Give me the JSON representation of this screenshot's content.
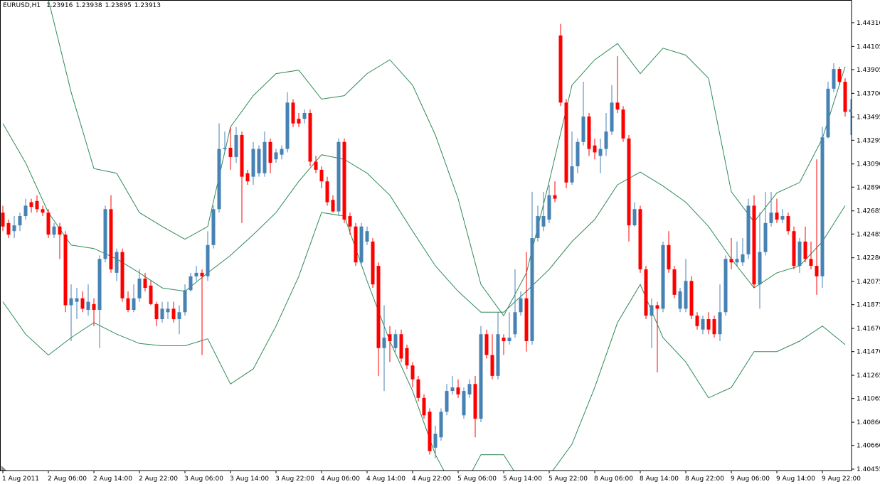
{
  "chart_data": {
    "type": "candlestick",
    "symbol": "EURUSD,H1",
    "header_values": [
      1.23916,
      1.23938,
      1.23895,
      1.23913
    ],
    "up_color": "#4682b4",
    "down_color": "#ff0000",
    "band_color": "#2e8b57",
    "grid": false,
    "ylim": [
      1.40443,
      1.44506
    ],
    "yticks": [
      {
        "value": 1.4431,
        "label": "1.44310"
      },
      1.44105,
      1.43905,
      {
        "value": 1.437,
        "label": "1.43700"
      },
      1.43495,
      1.43295,
      {
        "value": 1.4309,
        "label": "1.43090"
      },
      {
        "value": 1.4289,
        "label": "1.42890"
      },
      1.42685,
      1.42485,
      {
        "value": 1.4228,
        "label": "1.42280"
      },
      1.42075,
      1.41875,
      {
        "value": 1.4167,
        "label": "1.41670"
      },
      {
        "value": 1.4147,
        "label": "1.41470"
      },
      1.41265,
      1.41065,
      {
        "value": 1.4086,
        "label": "1.40860"
      },
      {
        "value": 1.4066,
        "label": "1.40660"
      },
      1.40455
    ],
    "categories": [
      "1 Aug 2011",
      null,
      null,
      null,
      null,
      null,
      null,
      null,
      "2 Aug 06:00",
      null,
      null,
      null,
      null,
      null,
      null,
      null,
      "2 Aug 14:00",
      null,
      null,
      null,
      null,
      null,
      null,
      null,
      "2 Aug 22:00",
      null,
      null,
      null,
      null,
      null,
      null,
      null,
      "3 Aug 06:00",
      null,
      null,
      null,
      null,
      null,
      null,
      null,
      "3 Aug 14:00",
      null,
      null,
      null,
      null,
      null,
      null,
      null,
      "3 Aug 22:00",
      null,
      null,
      null,
      null,
      null,
      null,
      null,
      "4 Aug 06:00",
      null,
      null,
      null,
      null,
      null,
      null,
      null,
      "4 Aug 14:00",
      null,
      null,
      null,
      null,
      null,
      null,
      null,
      "4 Aug 22:00",
      null,
      null,
      null,
      null,
      null,
      null,
      null,
      "5 Aug 06:00",
      null,
      null,
      null,
      null,
      null,
      null,
      null,
      "5 Aug 14:00",
      null,
      null,
      null,
      null,
      null,
      null,
      null,
      "5 Aug 22:00",
      null,
      null,
      null,
      null,
      null,
      null,
      null,
      "8 Aug 06:00",
      null,
      null,
      null,
      null,
      null,
      null,
      null,
      "8 Aug 14:00",
      null,
      null,
      null,
      null,
      null,
      null,
      null,
      "8 Aug 22:00",
      null,
      null,
      null,
      null,
      null,
      null,
      null,
      "9 Aug 06:00",
      null,
      null,
      null,
      null,
      null,
      null,
      null,
      "9 Aug 14:00",
      null,
      null,
      null,
      null,
      null,
      null,
      null,
      "9 Aug 22:00",
      null,
      null,
      null,
      null,
      null
    ],
    "open": [
      1.4267,
      1.4258,
      1.4251,
      1.4256,
      1.4264,
      1.4276,
      1.4277,
      1.427,
      1.4267,
      1.4248,
      1.4255,
      1.4248,
      1.4187,
      1.419,
      1.4193,
      1.4183,
      1.4188,
      1.4183,
      1.4227,
      1.427,
      1.4215,
      1.4233,
      1.4193,
      1.4183,
      1.4193,
      1.421,
      1.4204,
      1.4188,
      1.4175,
      1.4181,
      1.4184,
      1.4175,
      1.4181,
      1.42,
      1.4212,
      1.4215,
      1.4212,
      1.4239,
      1.427,
      1.4322,
      1.4323,
      1.4315,
      1.4334,
      1.4301,
      1.4298,
      1.4301,
      1.4301,
      1.4328,
      1.4313,
      1.4317,
      1.4322,
      1.4362,
      1.4348,
      1.4348,
      1.4353,
      1.4311,
      1.4304,
      1.4294,
      1.4278,
      1.4268,
      1.4328,
      1.4264,
      1.4255,
      1.4224,
      1.4242,
      1.4242,
      1.4221,
      1.415,
      1.4162,
      1.415,
      1.4162,
      1.415,
      1.4135,
      1.4123,
      1.4107,
      1.4095,
      1.4064,
      1.4073,
      1.4095,
      1.4113,
      1.4116,
      1.4092,
      1.411,
      1.4119,
      1.4089,
      1.4162,
      1.4144,
      1.4126,
      1.4159,
      1.4156,
      1.4162,
      1.4181,
      1.4193,
      1.4156,
      1.4245,
      1.4255,
      1.4261,
      1.4282,
      1.442,
      1.4362,
      1.4293,
      1.4307,
      1.4328,
      1.435,
      1.4325,
      1.4316,
      1.4322,
      1.4337,
      1.4362,
      1.4356,
      1.4331,
      1.4256,
      1.427,
      1.4218,
      1.4178,
      1.4187,
      1.4184,
      1.4239,
      1.4218,
      1.4184,
      1.4184,
      1.4208,
      1.4178,
      1.4166,
      1.4175,
      1.4175,
      1.4162,
      1.4181,
      1.4227,
      1.4224,
      1.4224,
      1.4231,
      1.4273,
      1.4205,
      1.4233,
      1.4258,
      1.4267,
      1.4261,
      1.4264,
      1.4251,
      1.4221,
      1.4242,
      1.4227,
      1.4221,
      1.4212,
      1.4332,
      1.4374,
      1.4391,
      1.438,
      1.4354
    ],
    "high": [
      1.4273,
      1.4261,
      1.4264,
      1.4267,
      1.4279,
      1.4279,
      1.4282,
      1.4273,
      1.427,
      1.4258,
      1.4258,
      1.4251,
      1.4205,
      1.4202,
      1.4199,
      1.4205,
      1.4193,
      1.423,
      1.4273,
      1.4282,
      1.4236,
      1.4236,
      1.4199,
      1.4205,
      1.4218,
      1.4215,
      1.4208,
      1.419,
      1.419,
      1.419,
      1.419,
      1.4187,
      1.4205,
      1.4215,
      1.4221,
      1.4218,
      1.4251,
      1.4273,
      1.4344,
      1.4337,
      1.4341,
      1.4341,
      1.4337,
      1.4304,
      1.4328,
      1.4325,
      1.4337,
      1.4331,
      1.4322,
      1.4325,
      1.4371,
      1.4365,
      1.4353,
      1.4356,
      1.4356,
      1.4316,
      1.4307,
      1.4298,
      1.4282,
      1.4331,
      1.4331,
      1.4267,
      1.4258,
      1.4258,
      1.4255,
      1.4245,
      1.4224,
      1.4187,
      1.4169,
      1.4166,
      1.4166,
      1.4153,
      1.4138,
      1.4126,
      1.411,
      1.4098,
      1.4083,
      1.4098,
      1.4119,
      1.4126,
      1.4123,
      1.4116,
      1.4123,
      1.4126,
      1.4169,
      1.4166,
      1.4162,
      1.4181,
      1.4162,
      1.4181,
      1.4218,
      1.4199,
      1.4233,
      1.4285,
      1.4273,
      1.4285,
      1.4291,
      1.4294,
      1.443,
      1.4365,
      1.4337,
      1.4331,
      1.438,
      1.4353,
      1.4331,
      1.4331,
      1.4353,
      1.4377,
      1.4402,
      1.4359,
      1.4334,
      1.4276,
      1.4273,
      1.4221,
      1.4193,
      1.419,
      1.4242,
      1.4251,
      1.4221,
      1.4202,
      1.4227,
      1.4212,
      1.4181,
      1.4178,
      1.4181,
      1.4178,
      1.4205,
      1.423,
      1.4245,
      1.4242,
      1.4245,
      1.4279,
      1.4282,
      1.4267,
      1.4285,
      1.4285,
      1.4279,
      1.427,
      1.4267,
      1.4255,
      1.4245,
      1.4255,
      1.4242,
      1.4313,
      1.4341,
      1.438,
      1.4396,
      1.4393,
      1.4383,
      1.4365
    ],
    "low": [
      1.4251,
      1.4245,
      1.4245,
      1.4251,
      1.4261,
      1.4267,
      1.4267,
      1.4264,
      1.4245,
      1.4245,
      1.4227,
      1.4181,
      1.4156,
      1.4175,
      1.4181,
      1.4178,
      1.4169,
      1.415,
      1.4224,
      1.4215,
      1.4208,
      1.419,
      1.4181,
      1.4181,
      1.419,
      1.4199,
      1.4187,
      1.4169,
      1.4172,
      1.4175,
      1.4172,
      1.4162,
      1.4178,
      1.4199,
      1.4208,
      1.4144,
      1.4208,
      1.4236,
      1.4267,
      1.4319,
      1.4304,
      1.431,
      1.4258,
      1.4291,
      1.4291,
      1.4298,
      1.4298,
      1.4301,
      1.431,
      1.4313,
      1.4319,
      1.4341,
      1.4341,
      1.4344,
      1.4307,
      1.4301,
      1.4288,
      1.4273,
      1.4267,
      1.4264,
      1.4258,
      1.4248,
      1.4221,
      1.4221,
      1.4239,
      1.4202,
      1.4126,
      1.4113,
      1.4138,
      1.4147,
      1.4138,
      1.4132,
      1.4116,
      1.4104,
      1.4089,
      1.4058,
      1.4055,
      1.407,
      1.4092,
      1.411,
      1.4107,
      1.4089,
      1.4107,
      1.4073,
      1.4086,
      1.4141,
      1.4123,
      1.4123,
      1.4144,
      1.4153,
      1.4159,
      1.4178,
      1.4147,
      1.4153,
      1.4242,
      1.4251,
      1.4258,
      1.4276,
      1.4359,
      1.4288,
      1.4291,
      1.4301,
      1.4325,
      1.4316,
      1.4313,
      1.4301,
      1.4316,
      1.4334,
      1.4353,
      1.4328,
      1.4242,
      1.4255,
      1.4215,
      1.4175,
      1.415,
      1.4129,
      1.4181,
      1.4215,
      1.4193,
      1.4181,
      1.4181,
      1.4175,
      1.4166,
      1.4162,
      1.4162,
      1.4159,
      1.4156,
      1.4178,
      1.4218,
      1.4221,
      1.4221,
      1.4227,
      1.4202,
      1.4184,
      1.423,
      1.4255,
      1.4258,
      1.4258,
      1.4248,
      1.4218,
      1.4215,
      1.4224,
      1.4218,
      1.4196,
      1.4202,
      1.4331,
      1.4371,
      1.4377,
      1.435,
      1.4334
    ],
    "close": [
      1.4255,
      1.4248,
      1.4256,
      1.4264,
      1.4273,
      1.4272,
      1.427,
      1.4267,
      1.4248,
      1.4255,
      1.4248,
      1.4187,
      1.4193,
      1.4193,
      1.4184,
      1.419,
      1.4183,
      1.4227,
      1.427,
      1.4218,
      1.4233,
      1.4193,
      1.4183,
      1.4193,
      1.421,
      1.4202,
      1.4188,
      1.4175,
      1.4184,
      1.4184,
      1.4175,
      1.4181,
      1.42,
      1.4212,
      1.4215,
      1.4212,
      1.4239,
      1.427,
      1.4322,
      1.4323,
      1.4315,
      1.4334,
      1.4298,
      1.4294,
      1.4322,
      1.4322,
      1.4328,
      1.431,
      1.4319,
      1.4322,
      1.4362,
      1.4344,
      1.4344,
      1.4353,
      1.4311,
      1.4304,
      1.4294,
      1.4276,
      1.4268,
      1.4328,
      1.4261,
      1.4255,
      1.4224,
      1.4255,
      1.4251,
      1.4205,
      1.415,
      1.4159,
      1.4156,
      1.4162,
      1.4141,
      1.4135,
      1.4123,
      1.4107,
      1.4092,
      1.4061,
      1.4076,
      1.4095,
      1.4113,
      1.4116,
      1.411,
      1.4113,
      1.4119,
      1.4089,
      1.4162,
      1.4144,
      1.4126,
      1.4162,
      1.4156,
      1.4159,
      1.4181,
      1.4193,
      1.4156,
      1.4245,
      1.4264,
      1.4264,
      1.4282,
      1.4279,
      1.4362,
      1.4293,
      1.4307,
      1.4328,
      1.435,
      1.4322,
      1.4319,
      1.4322,
      1.4337,
      1.4362,
      1.4356,
      1.4331,
      1.4256,
      1.427,
      1.4218,
      1.4178,
      1.4187,
      1.4184,
      1.4239,
      1.4218,
      1.4196,
      1.4199,
      1.4208,
      1.4178,
      1.4169,
      1.4175,
      1.4166,
      1.4162,
      1.4181,
      1.4227,
      1.4224,
      1.4227,
      1.4231,
      1.4273,
      1.4205,
      1.4233,
      1.4258,
      1.4267,
      1.4261,
      1.4264,
      1.4251,
      1.4221,
      1.4242,
      1.4227,
      1.4221,
      1.4212,
      1.4332,
      1.4374,
      1.4391,
      1.438,
      1.4354,
      1.4356
    ],
    "bands": [
      {
        "x": [
          0,
          4,
          8,
          12,
          16,
          20,
          24,
          28,
          32,
          36,
          40,
          44,
          48,
          52,
          56,
          60,
          64,
          68,
          72,
          76,
          80,
          84,
          88,
          92,
          96,
          100,
          104,
          108,
          112,
          116,
          120,
          124,
          128,
          132,
          136,
          140,
          144,
          148
        ],
        "values": [
          1.4488,
          1.4476,
          1.4451,
          1.4371,
          1.4305,
          1.4301,
          1.4267,
          1.4255,
          1.4244,
          1.4255,
          1.4341,
          1.4368,
          1.4387,
          1.439,
          1.4365,
          1.4368,
          1.4387,
          1.4399,
          1.4377,
          1.4334,
          1.4279,
          1.4205,
          1.4178,
          1.4215,
          1.4294,
          1.4377,
          1.4399,
          1.4413,
          1.4387,
          1.4409,
          1.4403,
          1.4383,
          1.4285,
          1.4259,
          1.4284,
          1.4293,
          1.4331,
          1.4393
        ]
      },
      {
        "x": [
          0,
          4,
          8,
          12,
          16,
          20,
          24,
          28,
          32,
          36,
          40,
          44,
          48,
          52,
          56,
          60,
          64,
          68,
          72,
          76,
          80,
          84,
          88,
          92,
          96,
          100,
          104,
          108,
          112,
          116,
          120,
          124,
          128,
          132,
          136,
          140,
          144,
          148
        ],
        "values": [
          1.4344,
          1.431,
          1.4267,
          1.4239,
          1.4236,
          1.4227,
          1.4215,
          1.4202,
          1.4199,
          1.4215,
          1.423,
          1.4248,
          1.4267,
          1.4294,
          1.4317,
          1.4313,
          1.4301,
          1.4282,
          1.4251,
          1.4221,
          1.4199,
          1.4181,
          1.4181,
          1.4199,
          1.4218,
          1.4242,
          1.4261,
          1.4291,
          1.4302,
          1.429,
          1.4276,
          1.4255,
          1.4227,
          1.4202,
          1.4215,
          1.4221,
          1.4242,
          1.4273
        ]
      },
      {
        "x": [
          0,
          4,
          8,
          12,
          16,
          20,
          24,
          28,
          32,
          36,
          40,
          44,
          48,
          52,
          56,
          60,
          64,
          68,
          72,
          76,
          80,
          84,
          88,
          92,
          96,
          100,
          104,
          108,
          112,
          116,
          120,
          124,
          128,
          132,
          136,
          140,
          144,
          148
        ],
        "values": [
          1.419,
          1.4162,
          1.4144,
          1.4159,
          1.4172,
          1.4162,
          1.4154,
          1.4152,
          1.4152,
          1.4158,
          1.4119,
          1.4132,
          1.4169,
          1.4212,
          1.4267,
          1.4264,
          1.4208,
          1.4156,
          1.4113,
          1.4058,
          1.4021,
          1.4058,
          1.4058,
          1.4027,
          1.404,
          1.4067,
          1.4116,
          1.4172,
          1.4205,
          1.4159,
          1.4138,
          1.4107,
          1.4116,
          1.4147,
          1.4147,
          1.4156,
          1.4169,
          1.4153
        ]
      }
    ]
  }
}
